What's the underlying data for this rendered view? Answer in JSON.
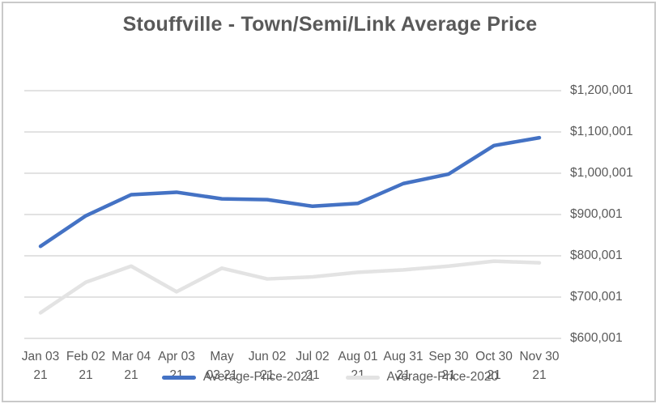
{
  "chart_data": {
    "type": "line",
    "title": "Stouffville - Town/Semi/Link Average Price",
    "categories": [
      "Jan 03 21",
      "Feb 02 21",
      "Mar 04 21",
      "Apr 03 21",
      "May 03 21",
      "Jun 02 21",
      "Jul 02 21",
      "Aug 01 21",
      "Aug 31 21",
      "Sep 30 21",
      "Oct 30 21",
      "Nov 30 21"
    ],
    "x_tick_lines": [
      [
        "Jan 03",
        "21"
      ],
      [
        "Feb 02",
        "21"
      ],
      [
        "Mar 04",
        "21"
      ],
      [
        "Apr 03",
        "21"
      ],
      [
        "May",
        "03 21"
      ],
      [
        "Jun 02",
        "21"
      ],
      [
        "Jul 02",
        "21"
      ],
      [
        "Aug 01",
        "21"
      ],
      [
        "Aug 31",
        "21"
      ],
      [
        "Sep 30",
        "21"
      ],
      [
        "Oct 30",
        "21"
      ],
      [
        "Nov 30",
        "21"
      ]
    ],
    "series": [
      {
        "name": "Average-Price-2021",
        "color": "#4472C4",
        "values": [
          823000,
          897000,
          948000,
          954000,
          938000,
          936000,
          920000,
          927000,
          975000,
          998000,
          1067000,
          1086000
        ]
      },
      {
        "name": "Average-Price-2020",
        "color": "#E3E3E3",
        "values": [
          662000,
          736000,
          775000,
          713000,
          770000,
          744000,
          749000,
          760000,
          766000,
          775000,
          787000,
          783000
        ]
      }
    ],
    "y_ticks": [
      "$600,001",
      "$700,001",
      "$800,001",
      "$900,001",
      "$1,000,001",
      "$1,100,001",
      "$1,200,001"
    ],
    "ylim": [
      600001,
      1200001
    ],
    "y_tick_step": 100000,
    "grid": true,
    "y_axis_side": "right",
    "legend_position": "bottom"
  },
  "colors": {
    "gridline": "#D9D9D9",
    "axis_text": "#595959",
    "title_text": "#595959",
    "frame_border": "#C9C9C9"
  }
}
